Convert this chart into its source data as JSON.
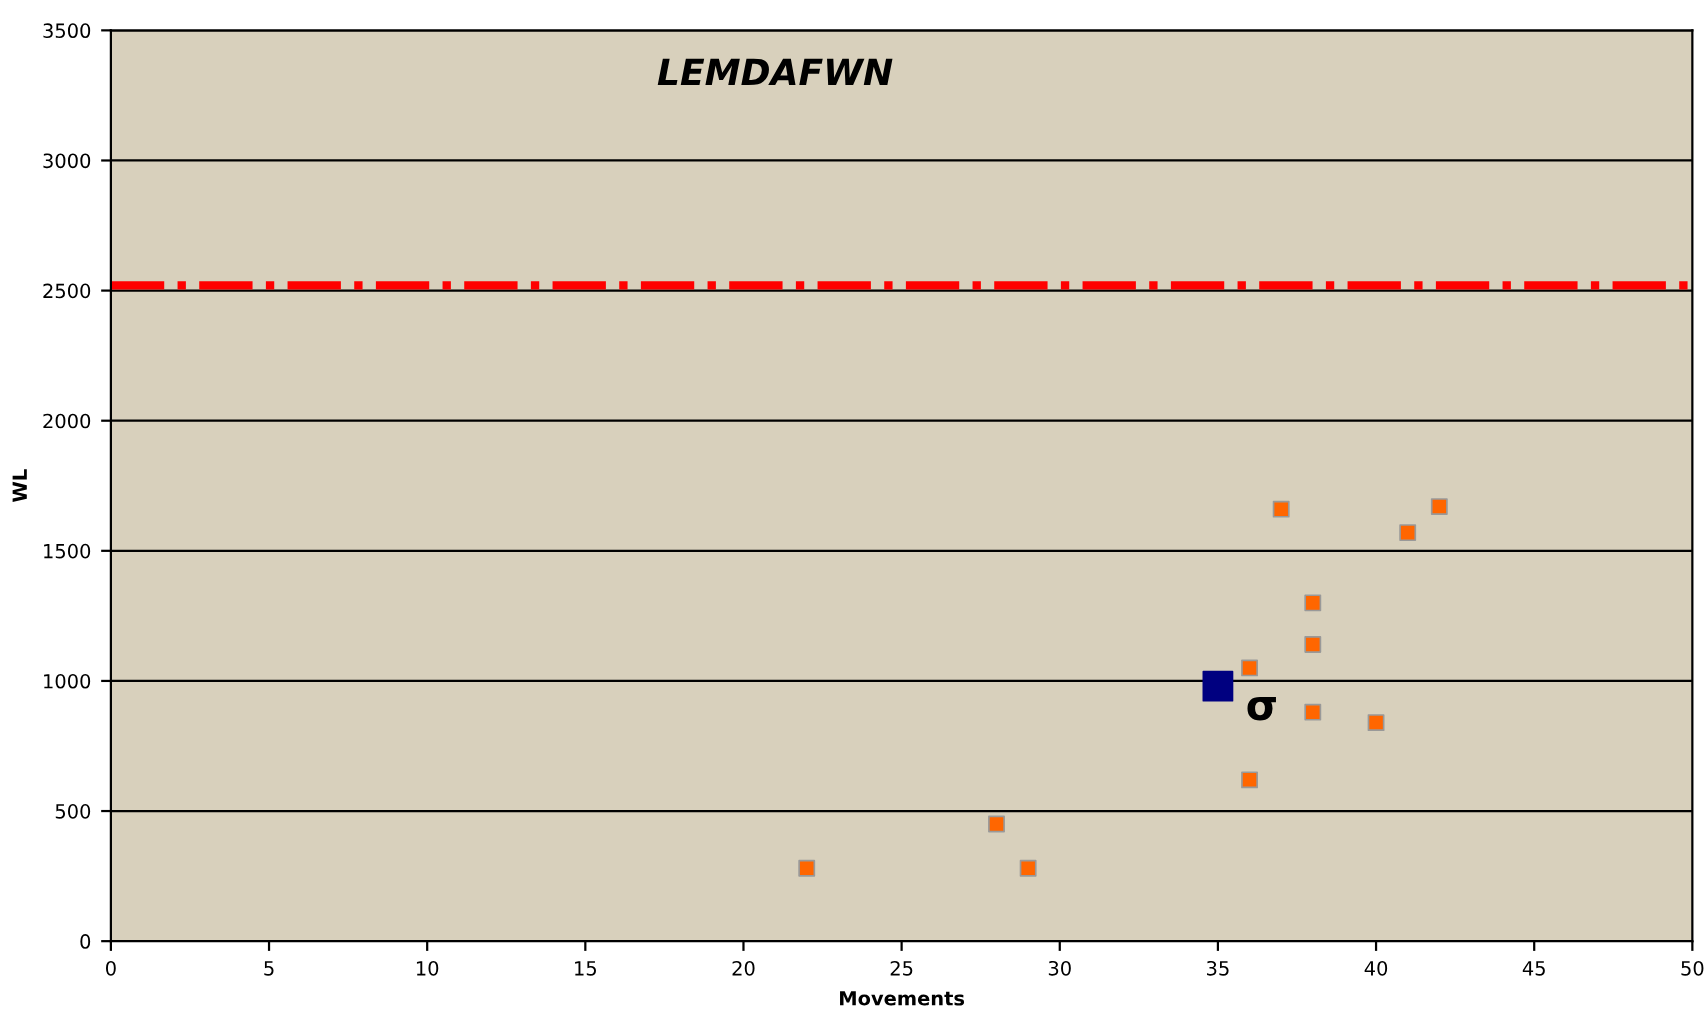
{
  "chart_data": {
    "type": "scatter",
    "title": "LEMDAFWN",
    "xlabel": "Movements",
    "ylabel": "WL",
    "series": [
      {
        "color": "#ff6600",
        "x": [
          22,
          28,
          29,
          36,
          36,
          37,
          38,
          38,
          38,
          40,
          41,
          42
        ],
        "values": [
          280,
          450,
          280,
          620,
          1050,
          1660,
          1300,
          1140,
          880,
          840,
          1570,
          1670
        ]
      },
      {
        "color": "#000080",
        "x": [
          35
        ],
        "values": [
          980
        ]
      }
    ],
    "annotations": [
      {
        "text": "σ",
        "x": 35,
        "y": 980
      }
    ],
    "ref_lines": [
      {
        "axis": "y",
        "value": 2520,
        "color": "#ff0000",
        "line_style": "dashdot"
      }
    ],
    "xlim": [
      0,
      50
    ],
    "xticks": [
      0,
      5,
      10,
      15,
      20,
      25,
      30,
      35,
      40,
      45,
      50
    ],
    "ylim": [
      0,
      3500
    ],
    "yticks": [
      0,
      500,
      1000,
      1500,
      2000,
      2500,
      3000,
      3500
    ],
    "grid": "y",
    "marker": "square",
    "legend": false
  }
}
